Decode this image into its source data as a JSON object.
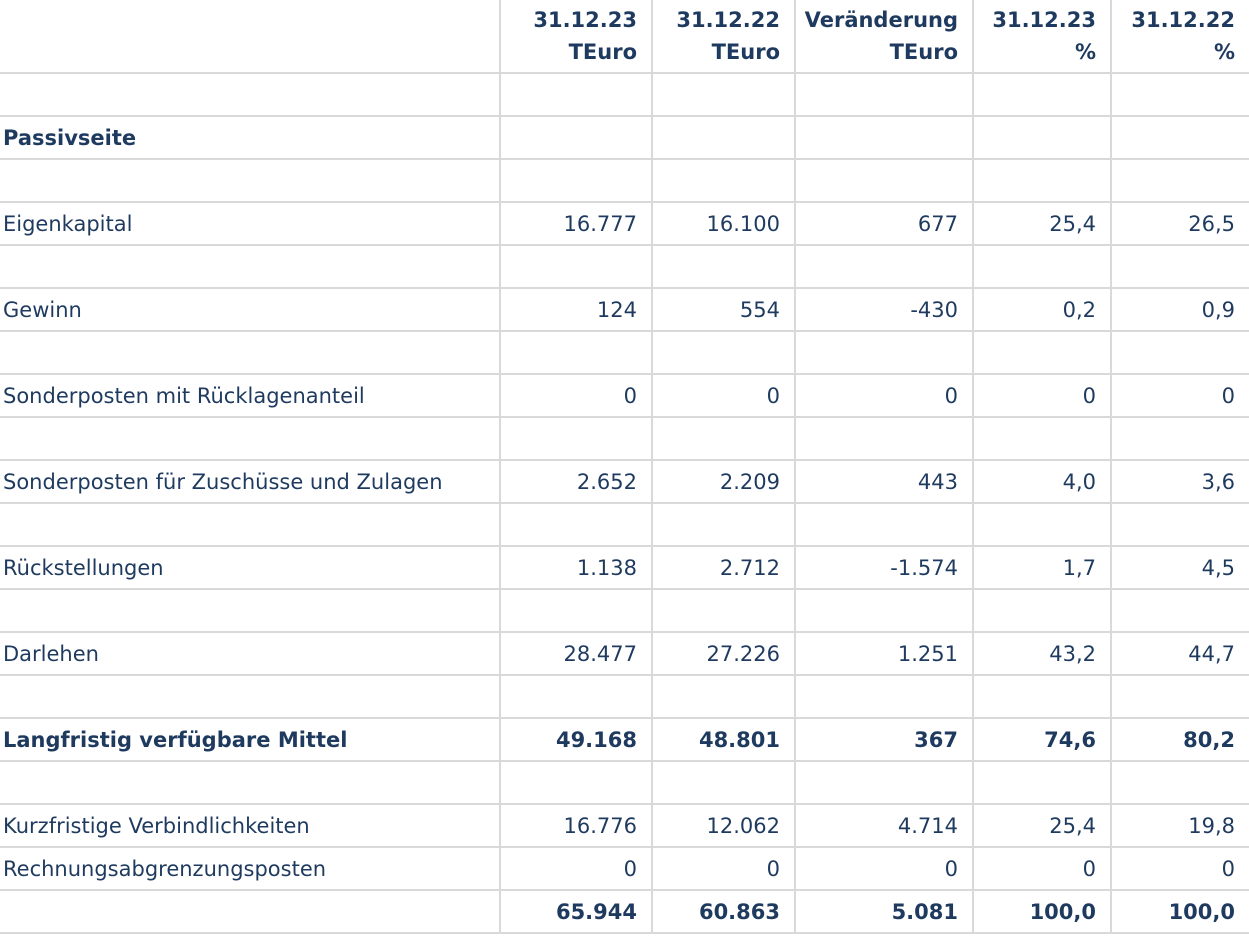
{
  "header": {
    "col_a": {
      "line1": "31.12.23",
      "line2": "TEuro"
    },
    "col_b": {
      "line1": "31.12.22",
      "line2": "TEuro"
    },
    "col_c": {
      "line1": "Veränderung",
      "line2": "TEuro"
    },
    "col_d": {
      "line1": "31.12.23",
      "line2": "%"
    },
    "col_e": {
      "line1": "31.12.22",
      "line2": "%"
    }
  },
  "section_title": "Passivseite",
  "rows": [
    {
      "label": "Eigenkapital",
      "v1": "16.777",
      "v2": "16.100",
      "v3": "677",
      "v4": "25,4",
      "v5": "26,5"
    },
    {
      "label": "Gewinn",
      "v1": "124",
      "v2": "554",
      "v3": "-430",
      "v4": "0,2",
      "v5": "0,9"
    },
    {
      "label": "Sonderposten mit Rücklagenanteil",
      "v1": "0",
      "v2": "0",
      "v3": "0",
      "v4": "0",
      "v5": "0"
    },
    {
      "label": "Sonderposten für Zuschüsse und Zulagen",
      "v1": "2.652",
      "v2": "2.209",
      "v3": "443",
      "v4": "4,0",
      "v5": "3,6"
    },
    {
      "label": "Rückstellungen",
      "v1": "1.138",
      "v2": "2.712",
      "v3": "-1.574",
      "v4": "1,7",
      "v5": "4,5"
    },
    {
      "label": "Darlehen",
      "v1": "28.477",
      "v2": "27.226",
      "v3": "1.251",
      "v4": "43,2",
      "v5": "44,7"
    },
    {
      "label": "Langfristig verfügbare Mittel",
      "v1": "49.168",
      "v2": "48.801",
      "v3": "367",
      "v4": "74,6",
      "v5": "80,2"
    },
    {
      "label": "Kurzfristige Verbindlichkeiten",
      "v1": "16.776",
      "v2": "12.062",
      "v3": "4.714",
      "v4": "25,4",
      "v5": "19,8"
    },
    {
      "label": "Rechnungsabgrenzungsposten",
      "v1": "0",
      "v2": "0",
      "v3": "0",
      "v4": "0",
      "v5": "0"
    }
  ],
  "total": {
    "label": "",
    "v1": "65.944",
    "v2": "60.863",
    "v3": "5.081",
    "v4": "100,0",
    "v5": "100,0"
  },
  "colors": {
    "text": "#1f3a5f",
    "grid": "#d9d9d9"
  }
}
